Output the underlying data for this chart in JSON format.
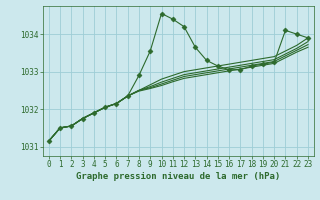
{
  "title": "Graphe pression niveau de la mer (hPa)",
  "bg_color": "#cce8ed",
  "grid_color": "#9ecdd6",
  "line_color": "#2d6a2d",
  "xlim": [
    -0.5,
    23.5
  ],
  "ylim": [
    1030.75,
    1034.75
  ],
  "yticks": [
    1031,
    1032,
    1033,
    1034
  ],
  "xticks": [
    0,
    1,
    2,
    3,
    4,
    5,
    6,
    7,
    8,
    9,
    10,
    11,
    12,
    13,
    14,
    15,
    16,
    17,
    18,
    19,
    20,
    21,
    22,
    23
  ],
  "series": [
    [
      1031.15,
      1031.5,
      1031.55,
      1031.75,
      1031.9,
      1032.05,
      1032.15,
      1032.35,
      1032.9,
      1033.55,
      1034.55,
      1034.4,
      1034.2,
      1033.65,
      1033.3,
      1033.15,
      1033.05,
      1033.05,
      1033.15,
      1033.2,
      1033.25,
      1034.1,
      1034.0,
      1033.9
    ],
    [
      1031.15,
      1031.5,
      1031.55,
      1031.75,
      1031.9,
      1032.05,
      1032.15,
      1032.35,
      1032.5,
      1032.65,
      1032.8,
      1032.9,
      1033.0,
      1033.05,
      1033.1,
      1033.15,
      1033.2,
      1033.25,
      1033.3,
      1033.35,
      1033.4,
      1033.55,
      1033.7,
      1033.9
    ],
    [
      1031.15,
      1031.5,
      1031.55,
      1031.75,
      1031.9,
      1032.05,
      1032.15,
      1032.35,
      1032.5,
      1032.6,
      1032.72,
      1032.82,
      1032.92,
      1032.97,
      1033.02,
      1033.07,
      1033.12,
      1033.17,
      1033.22,
      1033.27,
      1033.32,
      1033.47,
      1033.62,
      1033.8
    ],
    [
      1031.15,
      1031.5,
      1031.55,
      1031.75,
      1031.9,
      1032.05,
      1032.15,
      1032.35,
      1032.5,
      1032.57,
      1032.67,
      1032.77,
      1032.87,
      1032.92,
      1032.97,
      1033.02,
      1033.07,
      1033.12,
      1033.17,
      1033.22,
      1033.27,
      1033.42,
      1033.57,
      1033.72
    ],
    [
      1031.15,
      1031.5,
      1031.55,
      1031.75,
      1031.9,
      1032.05,
      1032.15,
      1032.35,
      1032.48,
      1032.55,
      1032.63,
      1032.73,
      1032.82,
      1032.87,
      1032.92,
      1032.97,
      1033.02,
      1033.07,
      1033.12,
      1033.17,
      1033.22,
      1033.37,
      1033.52,
      1033.65
    ]
  ],
  "marker_style": "D",
  "marker_size": 2.5,
  "linewidth": 0.8,
  "tick_fontsize": 5.5,
  "xlabel_fontsize": 6.5
}
